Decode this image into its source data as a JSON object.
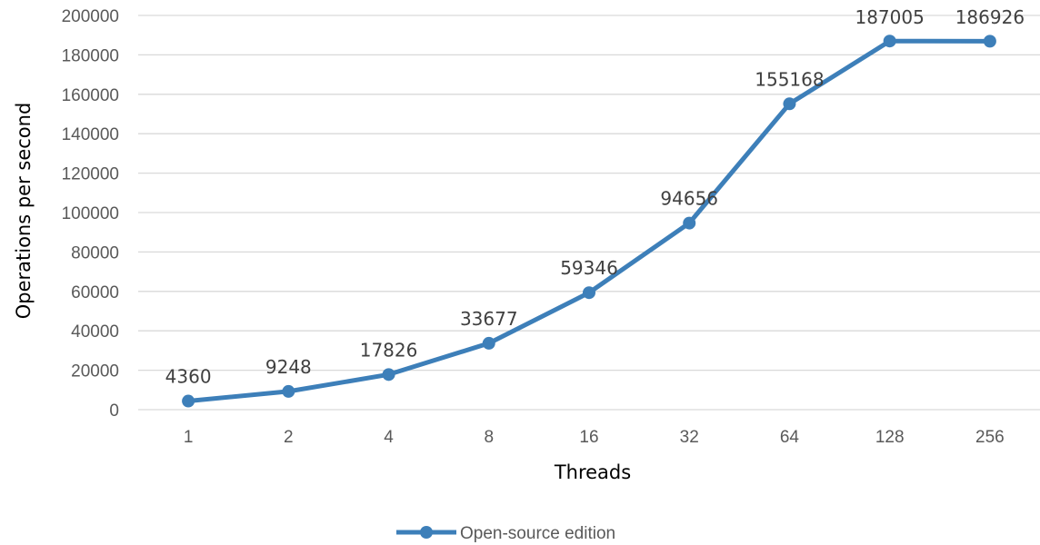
{
  "chart_data": {
    "type": "line",
    "categories": [
      "1",
      "2",
      "4",
      "8",
      "16",
      "32",
      "64",
      "128",
      "256"
    ],
    "series": [
      {
        "name": "Open-source edition",
        "values": [
          4360,
          9248,
          17826,
          33677,
          59346,
          94656,
          155168,
          187005,
          186926
        ],
        "color": "#3d7fb9"
      }
    ],
    "xlabel": "Threads",
    "ylabel": "Operations per second",
    "ylim": [
      0,
      200000
    ],
    "yticks": [
      "0",
      "20000",
      "40000",
      "60000",
      "80000",
      "100000",
      "120000",
      "140000",
      "160000",
      "180000",
      "200000"
    ],
    "grid": true,
    "legend": "bottom",
    "gridline_color": "#d9d9d9"
  }
}
